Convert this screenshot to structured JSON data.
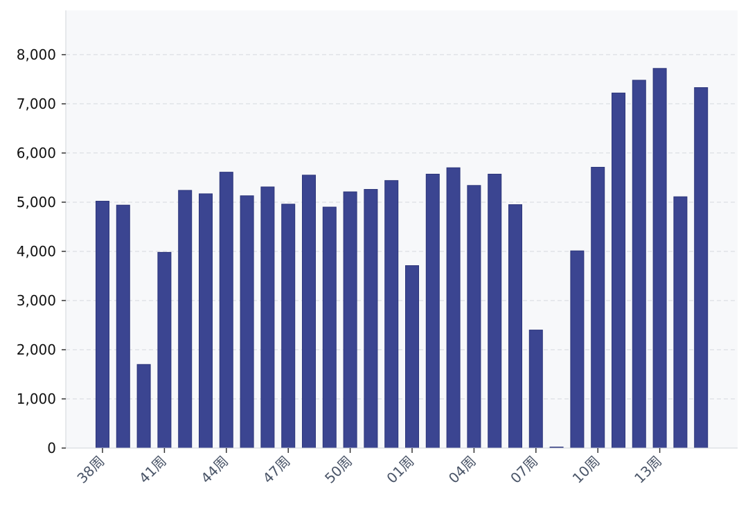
{
  "chart_data": {
    "type": "bar",
    "categories": [
      "38周",
      "39周",
      "40周",
      "41周",
      "42周",
      "43周",
      "44周",
      "45周",
      "46周",
      "47周",
      "48周",
      "49周",
      "50周",
      "51周",
      "52周",
      "01周",
      "02周",
      "03周",
      "04周",
      "05周",
      "06周",
      "07周",
      "08周",
      "09周",
      "10周",
      "11周",
      "12周",
      "13周",
      "14周",
      "15周"
    ],
    "values": [
      5020,
      4940,
      1700,
      3980,
      5240,
      5170,
      5610,
      5130,
      5310,
      4960,
      5550,
      4900,
      5210,
      5260,
      5440,
      3710,
      5570,
      5700,
      5340,
      5570,
      4950,
      2400,
      20,
      4010,
      5710,
      7220,
      7480,
      7720,
      5110,
      7330
    ],
    "x_tick_labels": [
      "38周",
      "41周",
      "44周",
      "47周",
      "50周",
      "01周",
      "04周",
      "07周",
      "10周",
      "13周"
    ],
    "y_tick_labels": [
      "0",
      "1,000",
      "2,000",
      "3,000",
      "4,000",
      "5,000",
      "6,000",
      "7,000",
      "8,000"
    ],
    "ylim": [
      0,
      8900
    ],
    "title": "",
    "xlabel": "",
    "ylabel": "",
    "grid": "horizontal-dashed",
    "bar_color": "#3b4591",
    "plot_background": "#f7f8fa"
  }
}
